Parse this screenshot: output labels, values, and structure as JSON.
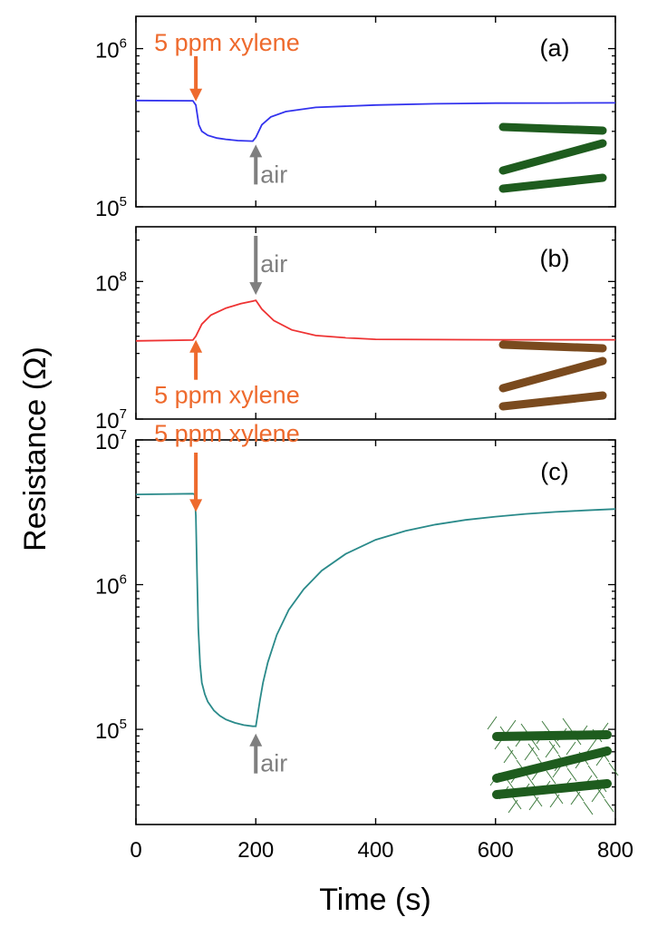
{
  "chart_data": [
    {
      "type": "line",
      "panel_label": "(a)",
      "xlabel": "Time (s)",
      "ylabel": "Resistance (Ω)",
      "xlim": [
        0,
        800
      ],
      "ylim": [
        100000,
        1600000
      ],
      "yscale": "log",
      "yticks": [
        {
          "base": "10",
          "exp": "5",
          "value": 100000
        },
        {
          "base": "10",
          "exp": "6",
          "value": 1000000
        }
      ],
      "series": [
        {
          "name": "a",
          "color": "#3333ee",
          "x": [
            0,
            95,
            100,
            105,
            110,
            120,
            135,
            150,
            170,
            195,
            200,
            210,
            225,
            250,
            300,
            400,
            500,
            600,
            700,
            800
          ],
          "y": [
            470000,
            468000,
            440000,
            330000,
            300000,
            283000,
            272000,
            267000,
            262000,
            260000,
            275000,
            330000,
            370000,
            400000,
            425000,
            440000,
            448000,
            452000,
            453000,
            454000
          ]
        }
      ],
      "annotations": [
        {
          "text": "5 ppm xylene",
          "x": 100,
          "style": "orange",
          "arrow": "down"
        },
        {
          "text": "air",
          "x": 200,
          "style": "gray",
          "arrow": "up"
        }
      ]
    },
    {
      "type": "line",
      "panel_label": "(b)",
      "xlabel": "Time (s)",
      "ylabel": "Resistance (Ω)",
      "xlim": [
        0,
        800
      ],
      "ylim": [
        10000000,
        250000000
      ],
      "yscale": "log",
      "yticks": [
        {
          "base": "10",
          "exp": "7",
          "value": 10000000
        },
        {
          "base": "10",
          "exp": "8",
          "value": 100000000
        }
      ],
      "series": [
        {
          "name": "b",
          "color": "#ee3333",
          "x": [
            0,
            95,
            100,
            110,
            125,
            150,
            175,
            195,
            200,
            210,
            230,
            260,
            300,
            350,
            400,
            500,
            600,
            700,
            800
          ],
          "y": [
            37000000,
            37500000,
            40000000,
            49000000,
            57000000,
            64000000,
            69000000,
            72000000,
            73000000,
            63000000,
            52000000,
            44500000,
            40500000,
            39000000,
            38000000,
            37800000,
            37700000,
            37700000,
            37700000
          ]
        }
      ],
      "annotations": [
        {
          "text": "air",
          "x": 200,
          "style": "gray",
          "arrow": "down"
        },
        {
          "text": "5 ppm xylene",
          "x": 100,
          "style": "orange",
          "arrow": "up"
        }
      ]
    },
    {
      "type": "line",
      "panel_label": "(c)",
      "xlabel": "Time (s)",
      "ylabel": "Resistance (Ω)",
      "xlim": [
        0,
        800
      ],
      "ylim": [
        22000,
        10000000
      ],
      "yscale": "log",
      "xticks": [
        0,
        200,
        400,
        600,
        800
      ],
      "yticks": [
        {
          "base": "10",
          "exp": "5",
          "value": 100000
        },
        {
          "base": "10",
          "exp": "6",
          "value": 1000000
        },
        {
          "base": "10",
          "exp": "7",
          "value": 10000000
        }
      ],
      "series": [
        {
          "name": "c",
          "color": "#2a8a8a",
          "x": [
            0,
            95,
            98,
            100,
            102,
            104,
            107,
            110,
            115,
            120,
            130,
            140,
            150,
            165,
            180,
            195,
            200,
            203,
            207,
            212,
            220,
            235,
            255,
            280,
            310,
            350,
            400,
            450,
            500,
            550,
            600,
            650,
            700,
            750,
            800
          ],
          "y": [
            4200000,
            4250000,
            4200000,
            3000000,
            1200000,
            500000,
            280000,
            210000,
            175000,
            155000,
            135000,
            124000,
            117000,
            111000,
            107000,
            105000,
            105000,
            125000,
            160000,
            210000,
            290000,
            450000,
            670000,
            930000,
            1250000,
            1630000,
            2040000,
            2350000,
            2600000,
            2800000,
            2950000,
            3080000,
            3180000,
            3260000,
            3330000
          ]
        }
      ],
      "annotations": [
        {
          "text": "5 ppm xylene",
          "x": 100,
          "style": "orange",
          "arrow": "down"
        },
        {
          "text": "air",
          "x": 200,
          "style": "gray",
          "arrow": "up"
        }
      ]
    }
  ],
  "colors": {
    "orange": "#ee6a2d",
    "gray": "#7f7f7f",
    "rod_green": "#1e5c1e",
    "rod_brown": "#7a4a1e"
  }
}
